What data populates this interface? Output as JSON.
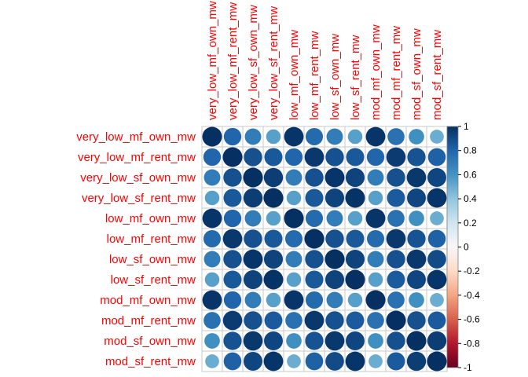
{
  "chart_data": {
    "type": "heatmap",
    "subtype": "correlation-circle-matrix",
    "title": "",
    "labels": [
      "very_low_mf_own_mw",
      "very_low_mf_rent_mw",
      "very_low_sf_own_mw",
      "very_low_sf_rent_mw",
      "low_mf_own_mw",
      "low_mf_rent_mw",
      "low_sf_own_mw",
      "low_sf_rent_mw",
      "mod_mf_own_mw",
      "mod_mf_rent_mw",
      "mod_sf_own_mw",
      "mod_sf_rent_mw"
    ],
    "matrix": [
      [
        1.0,
        0.8,
        0.7,
        0.55,
        0.98,
        0.78,
        0.7,
        0.55,
        0.98,
        0.75,
        0.62,
        0.5
      ],
      [
        0.8,
        1.0,
        0.88,
        0.85,
        0.8,
        0.97,
        0.88,
        0.85,
        0.8,
        0.96,
        0.87,
        0.82
      ],
      [
        0.7,
        0.88,
        1.0,
        0.95,
        0.7,
        0.88,
        0.98,
        0.93,
        0.7,
        0.88,
        0.97,
        0.92
      ],
      [
        0.55,
        0.85,
        0.95,
        1.0,
        0.55,
        0.85,
        0.93,
        0.99,
        0.55,
        0.84,
        0.92,
        0.98
      ],
      [
        0.98,
        0.8,
        0.7,
        0.55,
        1.0,
        0.78,
        0.7,
        0.55,
        0.98,
        0.75,
        0.62,
        0.5
      ],
      [
        0.78,
        0.97,
        0.88,
        0.85,
        0.78,
        1.0,
        0.88,
        0.85,
        0.78,
        0.97,
        0.87,
        0.82
      ],
      [
        0.7,
        0.88,
        0.98,
        0.93,
        0.7,
        0.88,
        1.0,
        0.93,
        0.7,
        0.88,
        0.97,
        0.9
      ],
      [
        0.55,
        0.85,
        0.93,
        0.99,
        0.55,
        0.85,
        0.93,
        1.0,
        0.55,
        0.84,
        0.92,
        0.98
      ],
      [
        0.98,
        0.8,
        0.7,
        0.55,
        0.98,
        0.78,
        0.7,
        0.55,
        1.0,
        0.75,
        0.62,
        0.5
      ],
      [
        0.75,
        0.96,
        0.88,
        0.84,
        0.75,
        0.97,
        0.88,
        0.84,
        0.75,
        1.0,
        0.88,
        0.84
      ],
      [
        0.62,
        0.87,
        0.97,
        0.92,
        0.62,
        0.87,
        0.97,
        0.92,
        0.62,
        0.88,
        1.0,
        0.95
      ],
      [
        0.5,
        0.82,
        0.92,
        0.98,
        0.5,
        0.82,
        0.9,
        0.98,
        0.5,
        0.84,
        0.95,
        1.0
      ]
    ],
    "color_scale": {
      "range": [
        -1,
        1
      ],
      "ticks": [
        "-1",
        "-0.8",
        "-0.6",
        "-0.4",
        "-0.2",
        "0",
        "0.2",
        "0.4",
        "0.6",
        "0.8",
        "1"
      ],
      "negative_color": "#67001f",
      "mid_color": "#f7f7f7",
      "positive_color": "#053061"
    },
    "label_color": "#ff0000",
    "grid": true,
    "legend_position": "right"
  }
}
